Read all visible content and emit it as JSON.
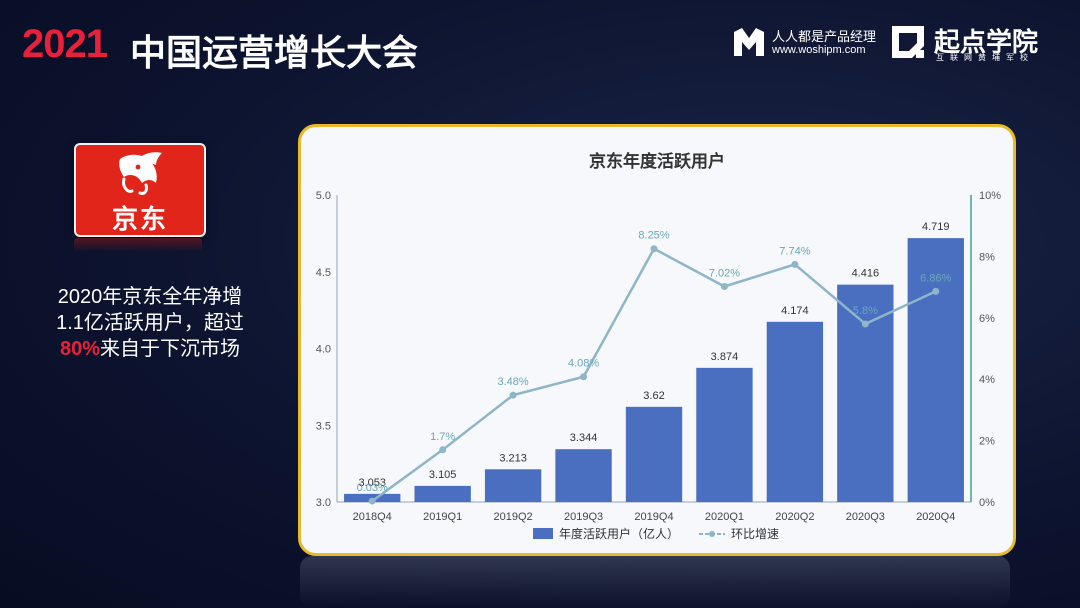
{
  "header": {
    "year": "2021",
    "title": "中国运营增长大会"
  },
  "brands": {
    "woshipm_name": "人人都是产品经理",
    "woshipm_url": "www.woshipm.com",
    "qidian_name": "起点学院",
    "qidian_sub": "互联网黄埔军校"
  },
  "logo": {
    "text": "京东"
  },
  "note": {
    "line1": "2020年京东全年净增",
    "line2": "1.1亿活跃用户，超过",
    "highlight": "80%",
    "line3_rest": "来自于下沉市场"
  },
  "colors": {
    "bar": "#4a6fc1",
    "line": "#8eb5c8",
    "accent": "#e8203a",
    "border": "#e7b92b"
  },
  "chart_data": {
    "type": "bar",
    "title": "京东年度活跃用户",
    "categories": [
      "2018Q4",
      "2019Q1",
      "2019Q2",
      "2019Q3",
      "2019Q4",
      "2020Q1",
      "2020Q2",
      "2020Q3",
      "2020Q4"
    ],
    "series": [
      {
        "name": "年度活跃用户（亿人）",
        "type": "bar",
        "axis": "left",
        "values": [
          3.053,
          3.105,
          3.213,
          3.344,
          3.62,
          3.874,
          4.174,
          4.416,
          4.719
        ],
        "labels": [
          "3.053",
          "3.105",
          "3.213",
          "3.344",
          "3.62",
          "3.874",
          "4.174",
          "4.416",
          "4.719"
        ]
      },
      {
        "name": "环比增速",
        "type": "line",
        "axis": "right",
        "values": [
          0.03,
          1.7,
          3.48,
          4.08,
          8.25,
          7.02,
          7.74,
          5.8,
          6.86
        ],
        "labels": [
          "0.03%",
          "1.7%",
          "3.48%",
          "4.08%",
          "8.25%",
          "7.02%",
          "7.74%",
          "5.8%",
          "6.86%"
        ]
      }
    ],
    "y_left": {
      "min": 3.0,
      "max": 5.0,
      "ticks": [
        "3.0",
        "3.5",
        "4.0",
        "4.5",
        "5.0"
      ]
    },
    "y_right": {
      "min": 0,
      "max": 10,
      "ticks": [
        "0%",
        "2%",
        "4%",
        "6%",
        "8%",
        "10%"
      ]
    },
    "legend_position": "bottom-center",
    "grid": false
  }
}
